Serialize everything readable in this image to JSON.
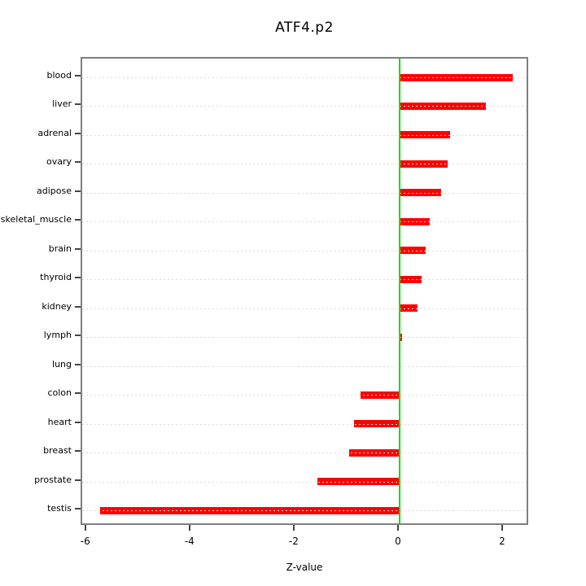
{
  "chart_data": {
    "type": "bar",
    "orientation": "horizontal",
    "title": "ATF4.p2",
    "xlabel": "Z-value",
    "ylabel": "",
    "categories": [
      "blood",
      "liver",
      "adrenal",
      "ovary",
      "adipose",
      "skeletal_muscle",
      "brain",
      "thyroid",
      "kidney",
      "lymph",
      "lung",
      "colon",
      "heart",
      "breast",
      "prostate",
      "testis"
    ],
    "values": [
      2.17,
      1.66,
      0.97,
      0.92,
      0.8,
      0.58,
      0.5,
      0.42,
      0.34,
      0.05,
      0.02,
      -0.75,
      -0.88,
      -0.97,
      -1.58,
      -5.75
    ],
    "xlim": [
      -6.09,
      2.5
    ],
    "x_ticks": [
      -6,
      -4,
      -2,
      0,
      2
    ],
    "zero_reference_line": 0,
    "grid": "dotted horizontal line per category, drawn over bars",
    "legend": "none",
    "colors": {
      "bar": "#ff0000",
      "zero_line": "#00dd00",
      "grid": "#d9d9d9",
      "box": "#7f7f7f",
      "tick": "#444444",
      "text": "#000000",
      "background": "#ffffff"
    }
  }
}
